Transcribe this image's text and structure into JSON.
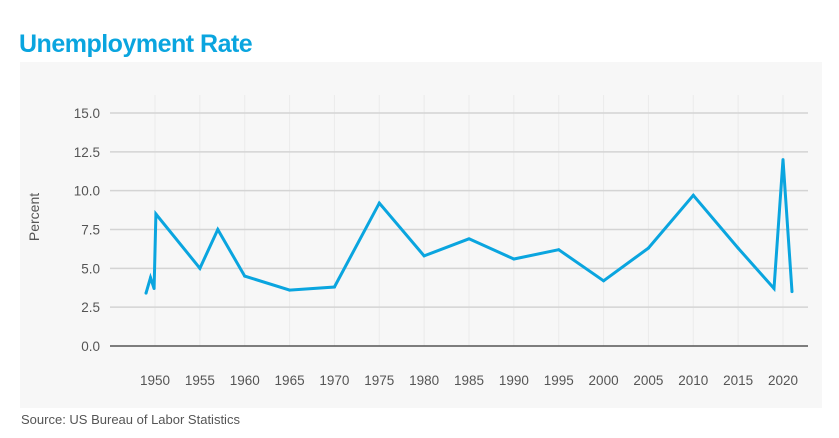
{
  "title": "Unemployment Rate",
  "source": "Source: US Bureau of Labor Statistics",
  "colors": {
    "line": "#0aa5df",
    "title": "#0aa5df",
    "grid": "#d4d4d4",
    "panel": "#f7f7f7"
  },
  "chart_data": {
    "type": "line",
    "title": "Unemployment Rate",
    "xlabel": "",
    "ylabel": "Percent",
    "ylim": [
      0,
      15
    ],
    "xlim": [
      1947,
      2022
    ],
    "yticks": [
      "0.0",
      "2.5",
      "5.0",
      "7.5",
      "10.0",
      "12.5",
      "15.0"
    ],
    "xticks": [
      "1950",
      "1955",
      "1960",
      "1965",
      "1970",
      "1975",
      "1980",
      "1985",
      "1990",
      "1995",
      "2000",
      "2005",
      "2010",
      "2015",
      "2020"
    ],
    "grid": true,
    "series": [
      {
        "name": "Unemployment Rate",
        "x": [
          1949,
          1949.5,
          1949.9,
          1950.1,
          1955,
          1957,
          1960,
          1965,
          1970,
          1975,
          1980,
          1985,
          1990,
          1995,
          2000,
          2005,
          2010,
          2015,
          2019,
          2020,
          2021
        ],
        "y": [
          3.4,
          4.4,
          3.7,
          8.5,
          5.0,
          7.5,
          4.5,
          3.6,
          3.8,
          9.2,
          5.8,
          6.9,
          5.6,
          6.2,
          4.2,
          6.3,
          9.7,
          6.3,
          3.7,
          12.0,
          3.5
        ]
      }
    ]
  }
}
